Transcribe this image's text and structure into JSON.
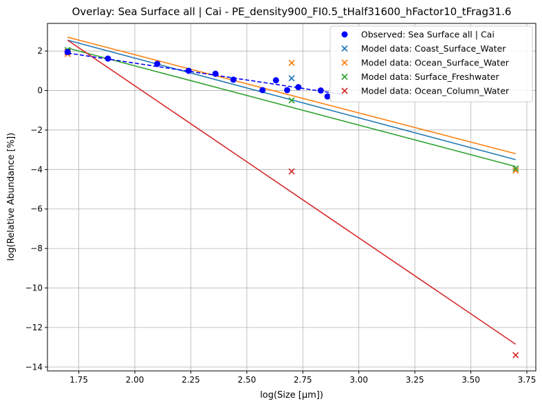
{
  "chart_data": {
    "type": "scatter",
    "title": "Overlay: Sea Surface all | Cai - PE_density900_FI0.5_tHalf31600_hFactor10_tFrag31.6",
    "xlabel": "log(Size [µm])",
    "ylabel": "log(Relative Abundance [%])",
    "xlim": [
      1.61,
      3.79
    ],
    "ylim": [
      -14.2,
      3.4
    ],
    "xticks": [
      1.75,
      2.0,
      2.25,
      2.5,
      2.75,
      3.0,
      3.25,
      3.5,
      3.75
    ],
    "xtick_labels": [
      "1.75",
      "2.00",
      "2.25",
      "2.50",
      "2.75",
      "3.00",
      "3.25",
      "3.50",
      "3.75"
    ],
    "yticks": [
      2,
      0,
      -2,
      -4,
      -6,
      -8,
      -10,
      -12,
      -14
    ],
    "ytick_labels": [
      "2",
      "0",
      "−2",
      "−4",
      "−6",
      "−8",
      "−10",
      "−12",
      "−14"
    ],
    "grid": true,
    "legend_position": "top-right",
    "observed": {
      "name": "Observed: Sea Surface all | Cai",
      "color": "#0000ff",
      "x": [
        1.7,
        1.88,
        2.1,
        2.24,
        2.36,
        2.44,
        2.57,
        2.63,
        2.68,
        2.73,
        2.83,
        2.86
      ],
      "y": [
        1.95,
        1.62,
        1.35,
        1.0,
        0.85,
        0.55,
        0.02,
        0.52,
        0.02,
        0.17,
        0.0,
        -0.3
      ]
    },
    "observed_fit": {
      "color": "#0000ff",
      "x": [
        1.7,
        2.93
      ],
      "y": [
        1.9,
        -0.2
      ]
    },
    "series": [
      {
        "name": "Model data: Coast_Surface_Water",
        "color": "#1f77b4",
        "x": [
          1.7,
          2.7,
          3.7
        ],
        "y": [
          1.95,
          0.62,
          -4.05
        ],
        "fit": {
          "x": [
            1.7,
            3.7
          ],
          "y": [
            2.55,
            -3.5
          ]
        }
      },
      {
        "name": "Model data: Ocean_Surface_Water",
        "color": "#ff7f0e",
        "x": [
          1.7,
          2.7,
          3.7
        ],
        "y": [
          1.85,
          1.4,
          -4.05
        ],
        "fit": {
          "x": [
            1.7,
            3.7
          ],
          "y": [
            2.7,
            -3.2
          ]
        }
      },
      {
        "name": "Model data: Surface_Freshwater",
        "color": "#2ca02c",
        "x": [
          1.7,
          2.7,
          3.7
        ],
        "y": [
          2.05,
          -0.5,
          -3.95
        ],
        "fit": {
          "x": [
            1.7,
            3.7
          ],
          "y": [
            2.15,
            -3.85
          ]
        }
      },
      {
        "name": "Model data: Ocean_Column_Water",
        "color": "#d62728",
        "x": [
          1.7,
          2.7,
          3.7
        ],
        "y": [
          1.95,
          -4.1,
          -13.4
        ],
        "fit": {
          "x": [
            1.7,
            3.7
          ],
          "y": [
            2.55,
            -12.85
          ]
        }
      }
    ]
  }
}
